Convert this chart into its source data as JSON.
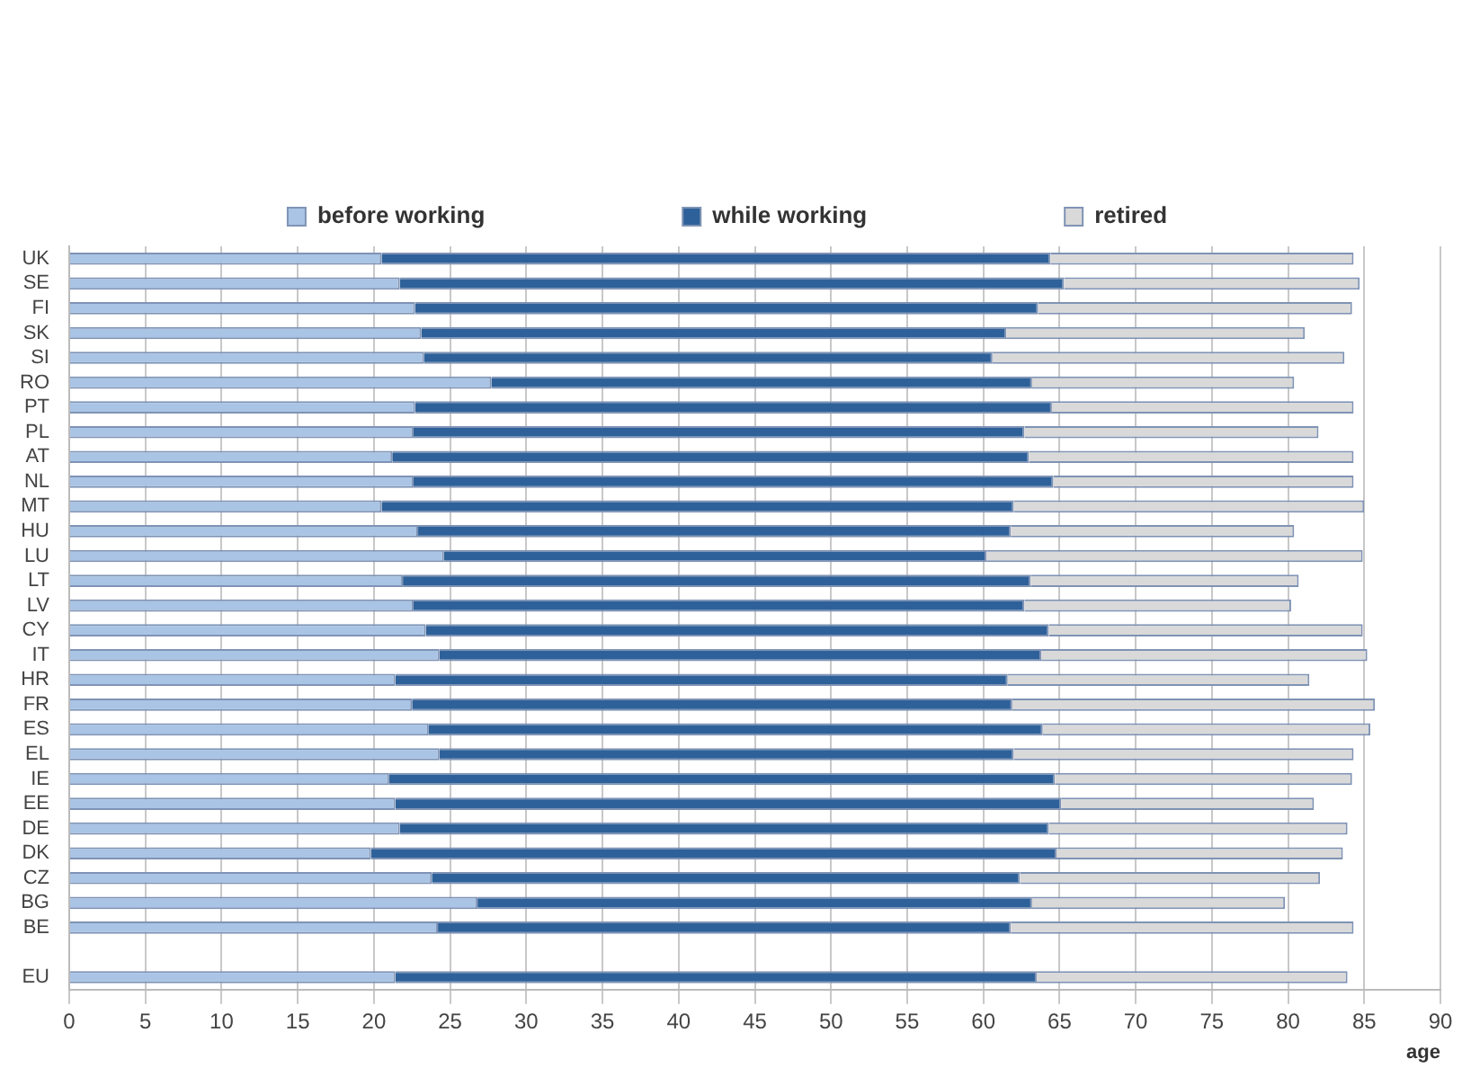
{
  "chart_data": {
    "type": "bar",
    "orientation": "horizontal",
    "stacked": true,
    "xlabel": "age",
    "categories": [
      "UK",
      "SE",
      "FI",
      "SK",
      "SI",
      "RO",
      "PT",
      "PL",
      "AT",
      "NL",
      "MT",
      "HU",
      "LU",
      "LT",
      "LV",
      "CY",
      "IT",
      "HR",
      "FR",
      "ES",
      "EL",
      "IE",
      "EE",
      "DE",
      "DK",
      "CZ",
      "BG",
      "BE",
      null,
      "EU"
    ],
    "series": [
      {
        "name": "before working",
        "color": "#a9c4e4",
        "values": [
          20.5,
          21.7,
          22.7,
          23.1,
          23.3,
          27.7,
          22.7,
          22.6,
          21.2,
          22.6,
          20.5,
          22.9,
          24.6,
          21.9,
          22.6,
          23.4,
          24.3,
          21.4,
          22.5,
          23.6,
          24.3,
          21.0,
          21.4,
          21.7,
          19.8,
          23.8,
          26.8,
          24.2,
          null,
          21.4
        ]
      },
      {
        "name": "while working",
        "color": "#2e6199",
        "values": [
          43.9,
          43.6,
          40.9,
          38.4,
          37.3,
          35.5,
          41.8,
          40.1,
          41.8,
          42.0,
          41.5,
          38.9,
          35.6,
          41.2,
          40.1,
          40.9,
          39.5,
          40.2,
          39.4,
          40.3,
          37.7,
          43.7,
          43.7,
          42.6,
          45.0,
          38.6,
          36.4,
          37.6,
          null,
          42.1
        ]
      },
      {
        "name": "retired",
        "color": "#d9d9d9",
        "values": [
          19.9,
          19.4,
          20.6,
          19.6,
          23.1,
          17.2,
          19.8,
          19.3,
          21.3,
          19.7,
          23.0,
          18.6,
          24.7,
          17.6,
          17.5,
          20.6,
          21.4,
          19.8,
          23.8,
          21.5,
          22.3,
          19.5,
          16.6,
          19.6,
          18.8,
          19.7,
          16.6,
          22.5,
          null,
          20.4
        ]
      }
    ],
    "xlim": [
      0,
      90
    ],
    "xticks": [
      0,
      5,
      10,
      15,
      20,
      25,
      30,
      35,
      40,
      45,
      50,
      55,
      60,
      65,
      70,
      75,
      80,
      85,
      90
    ],
    "grid": "x",
    "legend": "top"
  }
}
